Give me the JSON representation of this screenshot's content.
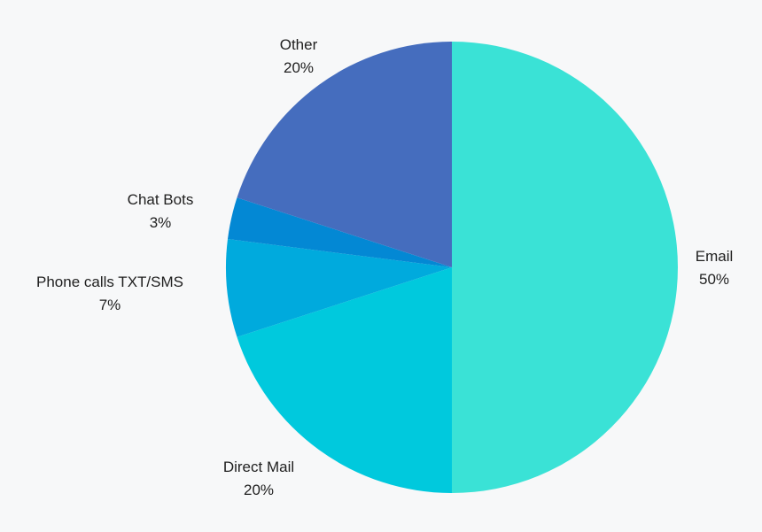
{
  "chart_data": {
    "type": "pie",
    "title": "",
    "start_angle_deg": 0,
    "direction": "clockwise",
    "legend": "none",
    "slices": [
      {
        "label": "Email",
        "value": 50,
        "value_label": "50%",
        "color": "#3ae2d6"
      },
      {
        "label": "Direct Mail",
        "value": 20,
        "value_label": "20%",
        "color": "#00c9dd"
      },
      {
        "label": "Phone calls TXT/SMS",
        "value": 7,
        "value_label": "7%",
        "color": "#00aadd"
      },
      {
        "label": "Chat Bots",
        "value": 3,
        "value_label": "3%",
        "color": "#0388d4"
      },
      {
        "label": "Other",
        "value": 20,
        "value_label": "20%",
        "color": "#456dbe"
      }
    ]
  }
}
